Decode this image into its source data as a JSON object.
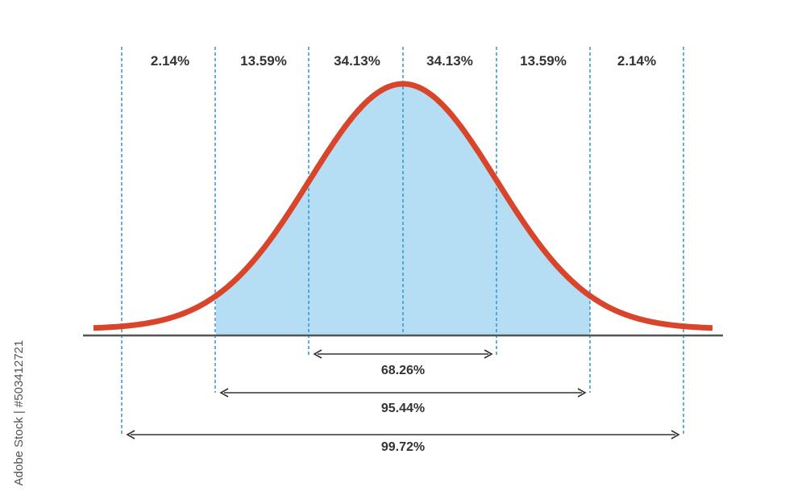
{
  "colors": {
    "curve": "#d9452a",
    "fill": "#b5def5",
    "divider": "#3a9ad9",
    "baseline": "#555555",
    "text": "#333333",
    "arrow": "#333333"
  },
  "segments": [
    "2.14%",
    "13.59%",
    "34.13%",
    "34.13%",
    "13.59%",
    "2.14%"
  ],
  "ranges": [
    {
      "label": "68.26%",
      "span_sigma": 1
    },
    {
      "label": "95.44%",
      "span_sigma": 2
    },
    {
      "label": "99.72%",
      "span_sigma": 3
    }
  ],
  "watermark": {
    "text": "Adobe Stock | #503412721"
  }
}
